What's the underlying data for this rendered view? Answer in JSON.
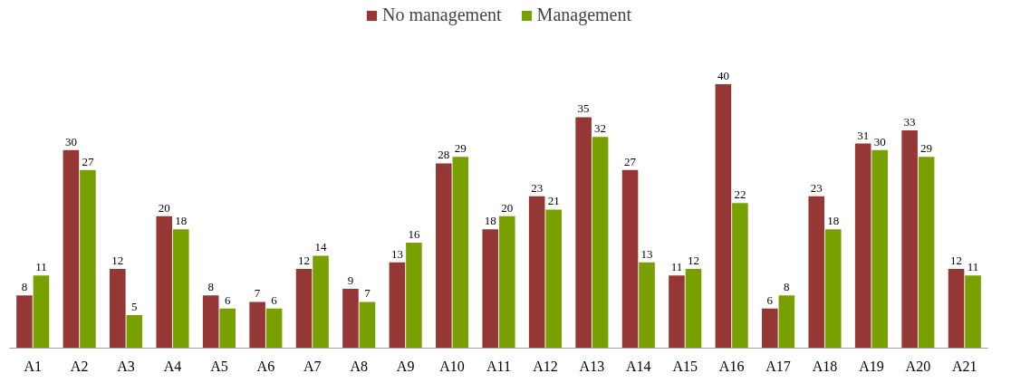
{
  "chart_data": {
    "type": "bar",
    "categories": [
      "A1",
      "A2",
      "A3",
      "A4",
      "A5",
      "A6",
      "A7",
      "A8",
      "A9",
      "A10",
      "A11",
      "A12",
      "A13",
      "A14",
      "A15",
      "A16",
      "A17",
      "A18",
      "A19",
      "A20",
      "A21"
    ],
    "series": [
      {
        "name": "No management",
        "color": "#953735",
        "values": [
          8,
          30,
          12,
          20,
          8,
          7,
          12,
          9,
          13,
          28,
          18,
          23,
          35,
          27,
          11,
          40,
          6,
          23,
          31,
          33,
          12
        ]
      },
      {
        "name": "Management",
        "color": "#77a000",
        "values": [
          11,
          27,
          5,
          18,
          6,
          6,
          14,
          7,
          16,
          29,
          20,
          21,
          32,
          13,
          12,
          22,
          8,
          18,
          30,
          29,
          11
        ]
      }
    ],
    "data_labels": true,
    "legend": "top",
    "grid": false
  }
}
